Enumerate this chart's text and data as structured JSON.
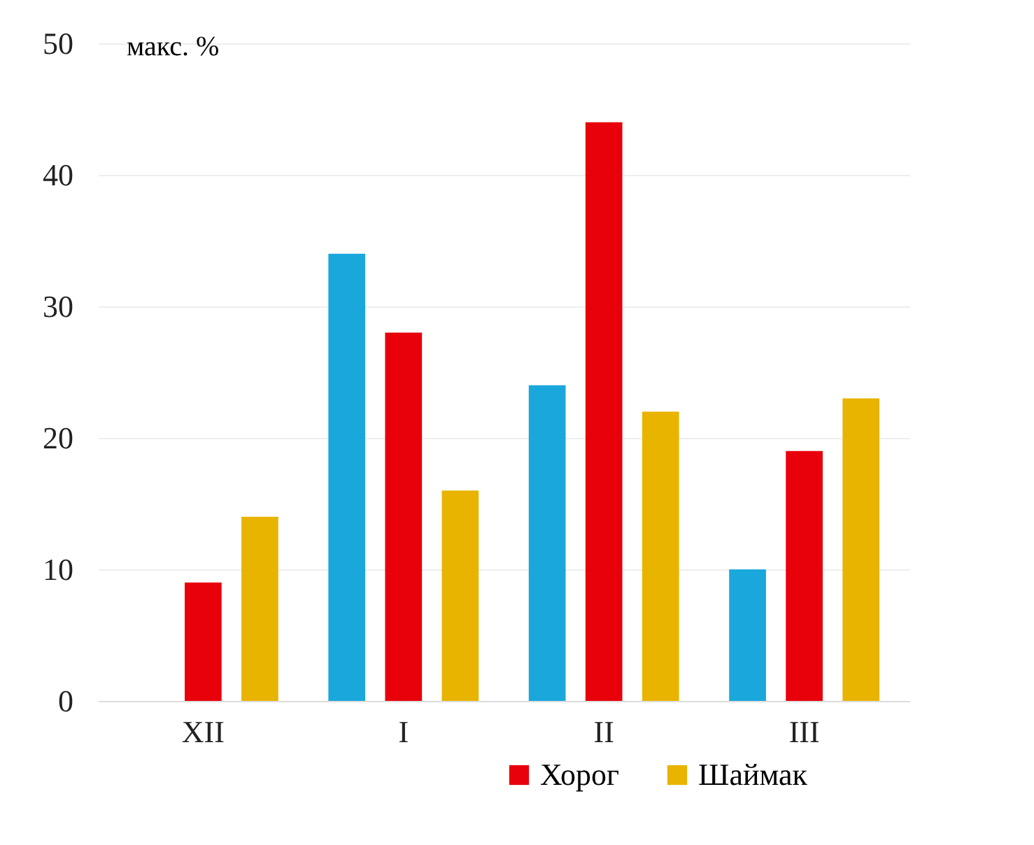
{
  "chart_data": {
    "type": "bar",
    "ylabel": "макс. %",
    "categories": [
      "XII",
      "I",
      "II",
      "III"
    ],
    "series": [
      {
        "color": "#1aa7dc",
        "values": [
          0,
          34,
          24,
          10
        ]
      },
      {
        "name": "Хорог",
        "color": "#e8000b",
        "values": [
          9,
          28,
          44,
          19
        ]
      },
      {
        "name": "Шаймак",
        "color": "#e8b400",
        "values": [
          14,
          16,
          22,
          23
        ]
      }
    ],
    "ylim": [
      0,
      50
    ],
    "yticks": [
      0,
      10,
      20,
      30,
      40,
      50
    ],
    "grid": "y",
    "legend": "bottom right"
  }
}
